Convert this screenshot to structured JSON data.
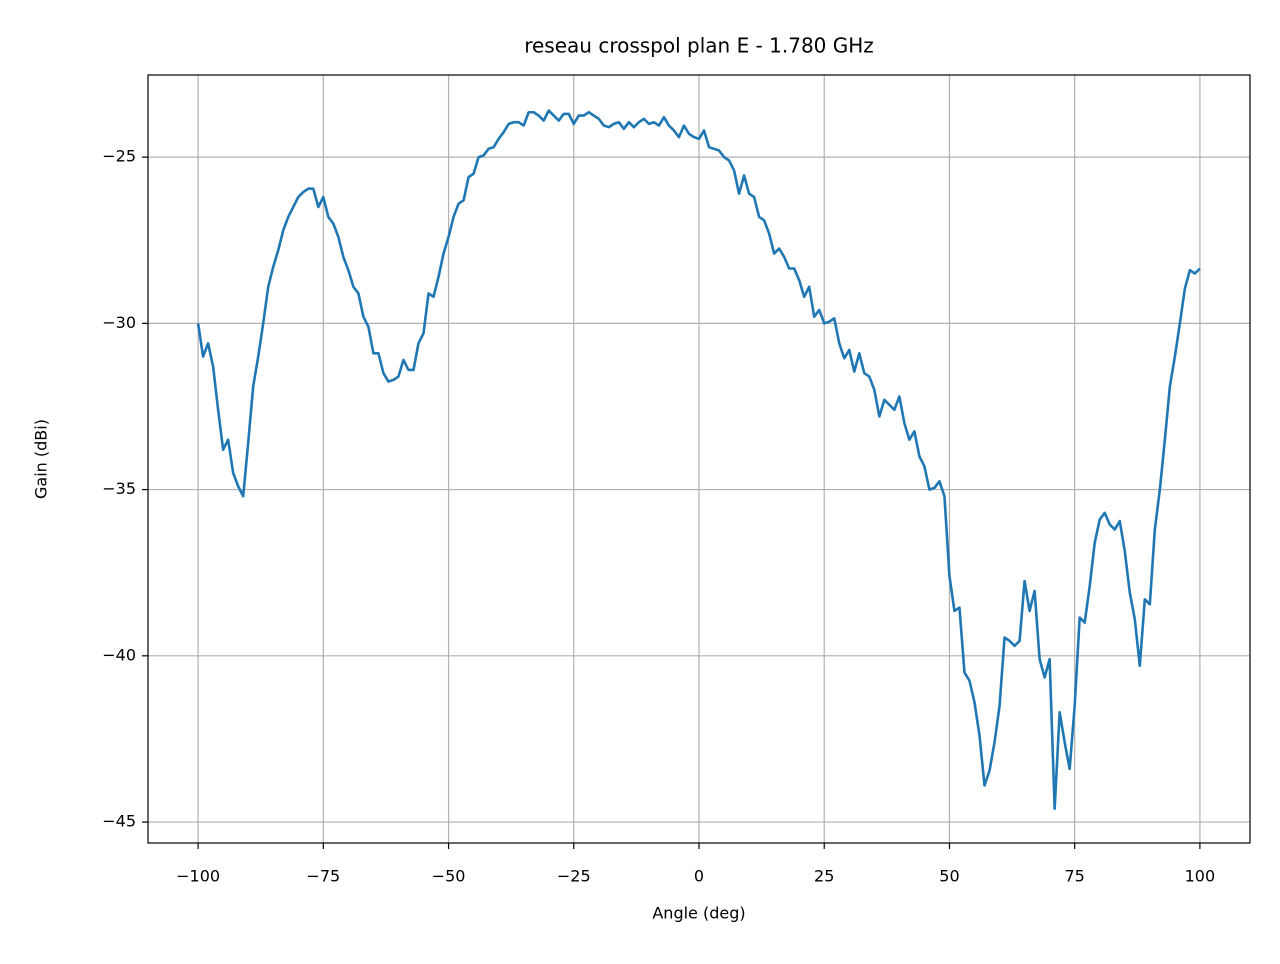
{
  "chart_data": {
    "type": "line",
    "title": "reseau crosspol plan E - 1.780 GHz",
    "x_label": "Angle (deg)",
    "y_label": "Gain (dBi)",
    "color": "#1f77b4",
    "grid": true,
    "xlim": [
      -110,
      110
    ],
    "ylim": [
      -45.63,
      -22.53
    ],
    "xticks": [
      {
        "value": -100,
        "label": "−100"
      },
      {
        "value": -75,
        "label": "−75"
      },
      {
        "value": -50,
        "label": "−50"
      },
      {
        "value": -25,
        "label": "−25"
      },
      0,
      25,
      50,
      75,
      100
    ],
    "yticks": [
      {
        "value": -45,
        "label": "−45"
      },
      {
        "value": -40,
        "label": "−40"
      },
      {
        "value": -35,
        "label": "−35"
      },
      {
        "value": -30,
        "label": "−30"
      },
      {
        "value": -25,
        "label": "−25"
      }
    ],
    "x": [
      -100,
      -99,
      -98,
      -97,
      -96,
      -95,
      -94,
      -93,
      -92,
      -91,
      -90,
      -89,
      -88,
      -87,
      -86,
      -85,
      -84,
      -83,
      -82,
      -81,
      -80,
      -79,
      -78,
      -77,
      -76,
      -75,
      -74,
      -73,
      -72,
      -71,
      -70,
      -69,
      -68,
      -67,
      -66,
      -65,
      -64,
      -63,
      -62,
      -61,
      -60,
      -59,
      -58,
      -57,
      -56,
      -55,
      -54,
      -53,
      -52,
      -51,
      -50,
      -49,
      -48,
      -47,
      -46,
      -45,
      -44,
      -43,
      -42,
      -41,
      -40,
      -39,
      -38,
      -37,
      -36,
      -35,
      -34,
      -33,
      -32,
      -31,
      -30,
      -29,
      -28,
      -27,
      -26,
      -25,
      -24,
      -23,
      -22,
      -21,
      -20,
      -19,
      -18,
      -17,
      -16,
      -15,
      -14,
      -13,
      -12,
      -11,
      -10,
      -9,
      -8,
      -7,
      -6,
      -5,
      -4,
      -3,
      -2,
      -1,
      0,
      1,
      2,
      3,
      4,
      5,
      6,
      7,
      8,
      9,
      10,
      11,
      12,
      13,
      14,
      15,
      16,
      17,
      18,
      19,
      20,
      21,
      22,
      23,
      24,
      25,
      26,
      27,
      28,
      29,
      30,
      31,
      32,
      33,
      34,
      35,
      36,
      37,
      38,
      39,
      40,
      41,
      42,
      43,
      44,
      45,
      46,
      47,
      48,
      49,
      50,
      51,
      52,
      53,
      54,
      55,
      56,
      57,
      58,
      59,
      60,
      61,
      62,
      63,
      64,
      65,
      66,
      67,
      68,
      69,
      70,
      71,
      72,
      73,
      74,
      75,
      76,
      77,
      78,
      79,
      80,
      81,
      82,
      83,
      84,
      85,
      86,
      87,
      88,
      89,
      90,
      91,
      92,
      93,
      94,
      95,
      96,
      97,
      98,
      99,
      100
    ],
    "values": [
      -30.0,
      -31.0,
      -30.6,
      -31.3,
      -32.6,
      -33.8,
      -33.5,
      -34.5,
      -34.9,
      -35.2,
      -33.6,
      -31.9,
      -31.0,
      -30.0,
      -28.9,
      -28.3,
      -27.8,
      -27.2,
      -26.8,
      -26.5,
      -26.2,
      -26.05,
      -25.95,
      -25.95,
      -26.5,
      -26.2,
      -26.8,
      -27.0,
      -27.4,
      -28.0,
      -28.4,
      -28.9,
      -29.1,
      -29.8,
      -30.1,
      -30.9,
      -30.9,
      -31.5,
      -31.75,
      -31.7,
      -31.6,
      -31.1,
      -31.4,
      -31.4,
      -30.6,
      -30.3,
      -29.1,
      -29.2,
      -28.6,
      -27.9,
      -27.4,
      -26.8,
      -26.4,
      -26.3,
      -25.6,
      -25.5,
      -25.0,
      -24.95,
      -24.75,
      -24.7,
      -24.45,
      -24.25,
      -24.0,
      -23.95,
      -23.95,
      -24.05,
      -23.65,
      -23.65,
      -23.75,
      -23.9,
      -23.6,
      -23.75,
      -23.9,
      -23.7,
      -23.7,
      -24.0,
      -23.75,
      -23.75,
      -23.65,
      -23.75,
      -23.85,
      -24.05,
      -24.1,
      -24.0,
      -23.95,
      -24.15,
      -23.95,
      -24.1,
      -23.95,
      -23.85,
      -24.0,
      -23.95,
      -24.05,
      -23.8,
      -24.05,
      -24.2,
      -24.4,
      -24.05,
      -24.3,
      -24.4,
      -24.45,
      -24.2,
      -24.7,
      -24.75,
      -24.8,
      -25.0,
      -25.1,
      -25.4,
      -26.1,
      -25.55,
      -26.1,
      -26.2,
      -26.8,
      -26.9,
      -27.3,
      -27.9,
      -27.75,
      -28.0,
      -28.35,
      -28.35,
      -28.7,
      -29.2,
      -28.9,
      -29.8,
      -29.6,
      -30.0,
      -29.95,
      -29.85,
      -30.6,
      -31.05,
      -30.8,
      -31.45,
      -30.9,
      -31.5,
      -31.6,
      -32.0,
      -32.8,
      -32.3,
      -32.45,
      -32.6,
      -32.2,
      -33.0,
      -33.5,
      -33.25,
      -34.0,
      -34.3,
      -35.0,
      -34.95,
      -34.75,
      -35.2,
      -37.6,
      -38.65,
      -38.55,
      -40.5,
      -40.75,
      -41.4,
      -42.4,
      -43.9,
      -43.45,
      -42.6,
      -41.5,
      -39.45,
      -39.55,
      -39.7,
      -39.55,
      -37.75,
      -38.65,
      -38.05,
      -40.1,
      -40.65,
      -40.1,
      -44.6,
      -41.7,
      -42.6,
      -43.4,
      -41.5,
      -38.85,
      -39.0,
      -37.9,
      -36.6,
      -35.9,
      -35.7,
      -36.05,
      -36.2,
      -35.95,
      -36.85,
      -38.1,
      -38.9,
      -40.3,
      -38.3,
      -38.45,
      -36.2,
      -35.0,
      -33.5,
      -31.9,
      -31.0,
      -30.0,
      -28.95,
      -28.4,
      -28.5,
      -28.35
    ]
  }
}
